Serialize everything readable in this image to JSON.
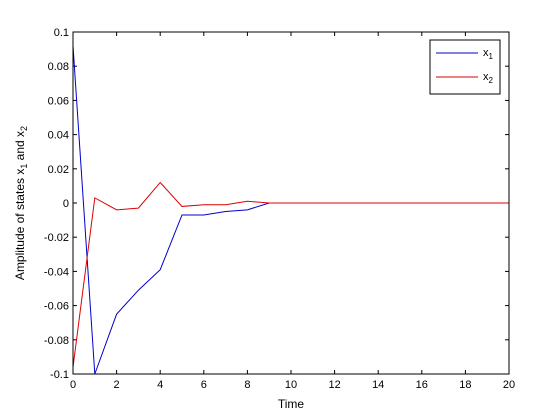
{
  "chart_data": {
    "type": "line",
    "title": "",
    "xlabel": "Time",
    "ylabel_main": "Amplitude of states x",
    "ylabel_sub1": "1",
    "ylabel_mid": " and x",
    "ylabel_sub2": "2",
    "xlim": [
      0,
      20
    ],
    "ylim": [
      -0.1,
      0.1
    ],
    "xticks": [
      "0",
      "2",
      "4",
      "6",
      "8",
      "10",
      "12",
      "14",
      "16",
      "18",
      "20"
    ],
    "yticks": [
      "-0.1",
      "-0.08",
      "-0.06",
      "-0.04",
      "-0.02",
      "0",
      "0.02",
      "0.04",
      "0.06",
      "0.08",
      "0.1"
    ],
    "grid": false,
    "legend_position": "top-right",
    "series": [
      {
        "name_base": "x",
        "name_sub": "1",
        "color": "#0000cc",
        "x": [
          0,
          1,
          2,
          3,
          4,
          5,
          6,
          7,
          8,
          9,
          10,
          11,
          12,
          13,
          14,
          15,
          16,
          17,
          18,
          19,
          20
        ],
        "y": [
          0.092,
          -0.1,
          -0.065,
          -0.051,
          -0.039,
          -0.007,
          -0.007,
          -0.005,
          -0.004,
          0,
          0,
          0,
          0,
          0,
          0,
          0,
          0,
          0,
          0,
          0,
          0
        ]
      },
      {
        "name_base": "x",
        "name_sub": "2",
        "color": "#dd0000",
        "x": [
          0,
          1,
          2,
          3,
          4,
          5,
          6,
          7,
          8,
          9,
          10,
          11,
          12,
          13,
          14,
          15,
          16,
          17,
          18,
          19,
          20
        ],
        "y": [
          -0.096,
          0.003,
          -0.004,
          -0.003,
          0.012,
          -0.002,
          -0.001,
          -0.001,
          0.001,
          0,
          0,
          0,
          0,
          0,
          0,
          0,
          0,
          0,
          0,
          0,
          0
        ]
      }
    ]
  }
}
